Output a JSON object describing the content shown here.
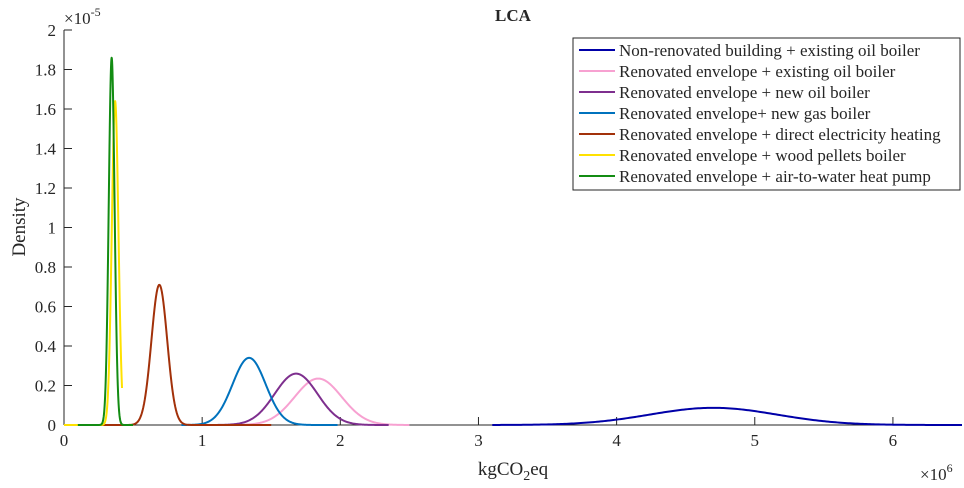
{
  "chart_data": {
    "type": "line",
    "title": "LCA",
    "xlabel_main": "kgCO",
    "xlabel_sub": "2",
    "xlabel_tail": "eq",
    "ylabel": "Density",
    "x_exponent_base": "×10",
    "x_exponent_power": "6",
    "y_exponent_base": "×10",
    "y_exponent_power": "-5",
    "xlim": [
      0,
      6.5
    ],
    "ylim": [
      0,
      2
    ],
    "x_ticks": [
      0,
      1,
      2,
      3,
      4,
      5,
      6
    ],
    "y_ticks": [
      0,
      0.2,
      0.4,
      0.6,
      0.8,
      1,
      1.2,
      1.4,
      1.6,
      1.8,
      2
    ],
    "x_tick_labels": [
      "0",
      "1",
      "2",
      "3",
      "4",
      "5",
      "6"
    ],
    "y_tick_labels": [
      "0",
      "0.2",
      "0.4",
      "0.6",
      "0.8",
      "1",
      "1.2",
      "1.4",
      "1.6",
      "1.8",
      "2"
    ],
    "grid": false,
    "legend_position": "top-right",
    "series": [
      {
        "name": "Non-renovated building + existing oil boiler",
        "color": "#0000a8",
        "mean": 4.7,
        "sd": 0.46,
        "peak": 0.087,
        "xmin": 3.1,
        "xmax": 6.5
      },
      {
        "name": "Renovated envelope + existing oil boiler",
        "color": "#f7a1d1",
        "mean": 1.84,
        "sd": 0.17,
        "peak": 0.235,
        "xmin": 1.2,
        "xmax": 2.5
      },
      {
        "name": "Renovated envelope + new oil boiler",
        "color": "#7e2f8e",
        "mean": 1.68,
        "sd": 0.155,
        "peak": 0.26,
        "xmin": 1.05,
        "xmax": 2.35
      },
      {
        "name": "Renovated envelope+ new gas boiler",
        "color": "#0072bd",
        "mean": 1.34,
        "sd": 0.12,
        "peak": 0.34,
        "xmin": 0.85,
        "xmax": 1.98
      },
      {
        "name": "Renovated envelope + direct electricity heating",
        "color": "#a2310a",
        "mean": 0.69,
        "sd": 0.057,
        "peak": 0.71,
        "xmin": 0.1,
        "xmax": 1.5
      },
      {
        "name": "Renovated envelope + wood pellets boiler",
        "color": "#ffe100",
        "mean": 0.37,
        "sd": 0.024,
        "peak": 1.64,
        "xmin": 0.0,
        "xmax": 0.42
      },
      {
        "name": "Renovated envelope + air-to-water heat pump",
        "color": "#138c13",
        "mean": 0.345,
        "sd": 0.021,
        "peak": 1.86,
        "xmin": 0.1,
        "xmax": 0.5
      }
    ]
  }
}
